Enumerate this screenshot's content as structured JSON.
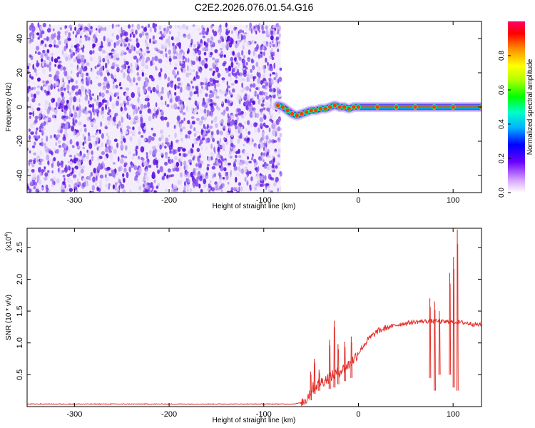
{
  "title": "C2E2.2026.076.01.54.G16",
  "colors": {
    "speckle": "#6a1fe6",
    "speckle_light": "#c9b4f3",
    "snr_line": "#e3312b",
    "axis": "#000000"
  },
  "chart_data": [
    {
      "type": "heatmap",
      "xlabel": "Height of straight line (km)",
      "ylabel": "Frequency (Hz)",
      "xlim": [
        -350,
        130
      ],
      "ylim": [
        -50,
        50
      ],
      "xticks": [
        -300,
        -200,
        -100,
        0,
        100
      ],
      "yticks": [
        -40,
        -20,
        0,
        20,
        40
      ],
      "colorbar": {
        "label": "Normalized spectral amplitude",
        "range": [
          0,
          1
        ],
        "ticks": [
          "0.0",
          "0.2",
          "0.4",
          "0.6",
          "0.8"
        ],
        "tick_values": [
          0,
          0.2,
          0.4,
          0.6,
          0.8
        ],
        "colormap": [
          "#ffffff",
          "#cc66ff",
          "#3300ff",
          "#00ccff",
          "#00ff66",
          "#66ff00",
          "#ffff00",
          "#ff6600",
          "#ff0000",
          "#ff0066"
        ]
      },
      "noise_region": {
        "x": [
          -350,
          -82
        ],
        "y": [
          -50,
          48
        ],
        "amplitude": [
          0.03,
          0.2
        ]
      },
      "ridge": {
        "x": [
          -85,
          -80,
          -75,
          -70,
          -65,
          -60,
          -55,
          -50,
          -45,
          -40,
          -35,
          -30,
          -25,
          -20,
          -15,
          -10,
          -5,
          0,
          20,
          40,
          60,
          80,
          100,
          130
        ],
        "freq": [
          1,
          0,
          -2,
          -4,
          -5,
          -4,
          -3,
          -2,
          -2,
          -1,
          -1,
          0,
          1,
          0,
          0,
          -1,
          0,
          0,
          0,
          0,
          0,
          0,
          0,
          0
        ]
      }
    },
    {
      "type": "line",
      "xlabel": "Height of straight line (km)",
      "ylabel": "SNR (10 * v/v)",
      "y_multiplier": "(x10",
      "y_multiplier_exp": "4",
      "y_multiplier_close": ")",
      "xlim": [
        -350,
        130
      ],
      "ylim": [
        0,
        2.8
      ],
      "xticks": [
        -300,
        -200,
        -100,
        0,
        100
      ],
      "yticks": [
        0.5,
        1.0,
        1.5,
        2.0,
        2.5
      ],
      "series": [
        {
          "x": [
            -350,
            -300,
            -250,
            -200,
            -150,
            -100,
            -70,
            -60,
            -55,
            -52,
            -50,
            -48,
            -45,
            -40,
            -35,
            -30,
            -25,
            -20,
            -15,
            -10,
            -5,
            0,
            10,
            20,
            30,
            40,
            50,
            60,
            70,
            80,
            90,
            100,
            110,
            120,
            130
          ],
          "y": [
            0.04,
            0.04,
            0.04,
            0.04,
            0.04,
            0.04,
            0.04,
            0.06,
            0.12,
            0.2,
            0.25,
            0.3,
            0.32,
            0.38,
            0.42,
            0.47,
            0.5,
            0.56,
            0.6,
            0.66,
            0.74,
            0.85,
            1.05,
            1.18,
            1.24,
            1.28,
            1.31,
            1.33,
            1.34,
            1.34,
            1.33,
            1.33,
            1.32,
            1.3,
            1.28
          ],
          "spikes": [
            {
              "x": -51,
              "min": 0.1,
              "max": 0.55
            },
            {
              "x": -47,
              "min": 0.2,
              "max": 0.75
            },
            {
              "x": -42,
              "min": 0.25,
              "max": 0.58
            },
            {
              "x": -31,
              "min": 0.28,
              "max": 1.05
            },
            {
              "x": -26,
              "min": 0.3,
              "max": 1.35
            },
            {
              "x": -22,
              "min": 0.35,
              "max": 0.98
            },
            {
              "x": -15,
              "min": 0.4,
              "max": 1.02
            },
            {
              "x": -8,
              "min": 0.45,
              "max": 1.1
            },
            {
              "x": 75,
              "min": 0.45,
              "max": 1.7
            },
            {
              "x": 80,
              "min": 0.25,
              "max": 1.65
            },
            {
              "x": 85,
              "min": 0.5,
              "max": 1.5
            },
            {
              "x": 96,
              "min": 0.5,
              "max": 2.1
            },
            {
              "x": 100,
              "min": 0.3,
              "max": 2.35
            },
            {
              "x": 104,
              "min": 0.25,
              "max": 2.78
            }
          ]
        }
      ]
    }
  ]
}
